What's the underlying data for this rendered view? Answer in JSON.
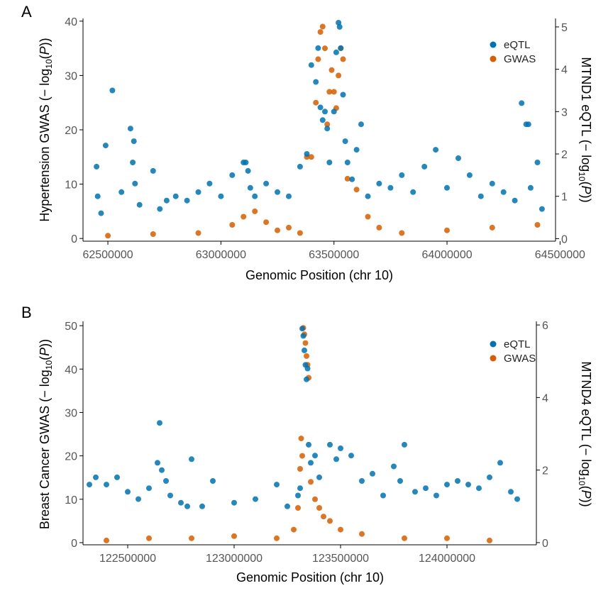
{
  "chart_data": [
    {
      "type": "scatter",
      "panel_label": "A",
      "xlabel": "Genomic Position (chr 10)",
      "ylabel_left": "Hypertension GWAS (− log",
      "ylabel_right": "MTND1 eQTL (− log",
      "ylabel_sub": "10",
      "ylabel_var": "P",
      "xlim": [
        62390000,
        64480000
      ],
      "xticks": [
        62500000,
        63000000,
        63500000,
        64000000,
        64500000
      ],
      "xtick_labels": [
        "62500000",
        "63000000",
        "63500000",
        "64000000",
        "64500000"
      ],
      "ylim_left": [
        -0.5,
        40.5
      ],
      "yticks_left": [
        0,
        10,
        20,
        30,
        40
      ],
      "ytick_labels_left": [
        "0",
        "10",
        "20",
        "30",
        "40"
      ],
      "ylim_right": [
        -0.06,
        5.2
      ],
      "yticks_right": [
        0,
        1,
        2,
        3,
        4,
        5
      ],
      "ytick_labels_right": [
        "0",
        "1",
        "2",
        "3",
        "4",
        "5"
      ],
      "legend_position": "top-right",
      "grid": false,
      "series": [
        {
          "name": "eQTL",
          "color": "#0072B2",
          "axis": "right",
          "x": [
            62450000,
            62455000,
            62470000,
            62490000,
            62520000,
            62560000,
            62600000,
            62610000,
            62615000,
            62620000,
            62640000,
            62700000,
            62730000,
            62760000,
            62800000,
            62850000,
            62900000,
            62950000,
            63000000,
            63050000,
            63100000,
            63110000,
            63120000,
            63130000,
            63150000,
            63200000,
            63250000,
            63300000,
            63350000,
            63380000,
            63400000,
            63420000,
            63430000,
            63440000,
            63450000,
            63460000,
            63470000,
            63480000,
            63500000,
            63510000,
            63520000,
            63525000,
            63530000,
            63540000,
            63550000,
            63560000,
            63580000,
            63600000,
            63620000,
            63650000,
            63700000,
            63750000,
            63800000,
            63850000,
            63900000,
            63950000,
            64000000,
            64050000,
            64100000,
            64150000,
            64200000,
            64250000,
            64300000,
            64330000,
            64350000,
            64360000,
            64370000,
            64400000,
            64420000
          ],
          "y": [
            1.7,
            1.0,
            0.6,
            2.2,
            3.5,
            1.1,
            2.6,
            1.8,
            2.3,
            1.3,
            0.8,
            1.6,
            0.7,
            0.9,
            1.0,
            0.9,
            1.1,
            1.3,
            1.0,
            1.5,
            1.8,
            1.8,
            1.6,
            1.2,
            1.0,
            1.3,
            1.1,
            1.0,
            1.7,
            2.0,
            4.1,
            3.7,
            4.5,
            3.1,
            2.8,
            3.0,
            2.6,
            1.8,
            3.0,
            4.4,
            5.1,
            5.0,
            4.5,
            3.4,
            2.3,
            1.8,
            1.4,
            2.1,
            2.7,
            1.0,
            1.3,
            1.2,
            1.5,
            1.1,
            1.7,
            2.1,
            1.2,
            1.9,
            1.5,
            1.0,
            1.3,
            1.1,
            0.9,
            3.2,
            2.7,
            2.7,
            1.2,
            1.8,
            0.7
          ]
        },
        {
          "name": "GWAS",
          "color": "#D55E00",
          "axis": "left",
          "x": [
            62500000,
            62700000,
            62900000,
            63050000,
            63100000,
            63150000,
            63200000,
            63250000,
            63300000,
            63350000,
            63380000,
            63400000,
            63420000,
            63430000,
            63440000,
            63450000,
            63460000,
            63470000,
            63480000,
            63490000,
            63500000,
            63510000,
            63520000,
            63530000,
            63540000,
            63560000,
            63600000,
            63650000,
            63700000,
            63800000,
            64000000,
            64200000,
            64400000
          ],
          "y": [
            0.5,
            0.8,
            1.0,
            2.5,
            4.0,
            5.0,
            3.0,
            1.5,
            2.0,
            1.0,
            15.0,
            15.0,
            25.0,
            33.0,
            38.0,
            39.0,
            35.0,
            21.0,
            27.0,
            31.0,
            27.0,
            24.0,
            30.0,
            35.0,
            33.0,
            11.0,
            9.0,
            4.0,
            2.0,
            1.0,
            1.5,
            2.0,
            2.5
          ]
        }
      ]
    },
    {
      "type": "scatter",
      "panel_label": "B",
      "xlabel": "Genomic Position (chr 10)",
      "ylabel_left": "Breast Cancer GWAS (− log",
      "ylabel_right": "MTND4 eQTL (− log",
      "ylabel_sub": "10",
      "ylabel_var": "P",
      "xlim": [
        122290000,
        124420000
      ],
      "xticks": [
        122500000,
        123000000,
        123500000,
        124000000
      ],
      "xtick_labels": [
        "122500000",
        "123000000",
        "123500000",
        "124000000"
      ],
      "ylim_left": [
        -0.5,
        51
      ],
      "yticks_left": [
        0,
        10,
        20,
        30,
        40,
        50
      ],
      "ytick_labels_left": [
        "0",
        "10",
        "20",
        "30",
        "40",
        "50"
      ],
      "ylim_right": [
        -0.06,
        6.1
      ],
      "yticks_right": [
        0,
        2,
        4,
        6
      ],
      "ytick_labels_right": [
        "0",
        "2",
        "4",
        "6"
      ],
      "legend_position": "top-right",
      "grid": false,
      "series": [
        {
          "name": "eQTL",
          "color": "#0072B2",
          "axis": "right",
          "x": [
            122320000,
            122350000,
            122400000,
            122450000,
            122500000,
            122550000,
            122600000,
            122640000,
            122650000,
            122660000,
            122680000,
            122700000,
            122750000,
            122780000,
            122800000,
            122850000,
            122900000,
            123000000,
            123100000,
            123200000,
            123250000,
            123300000,
            123310000,
            123320000,
            123325000,
            123330000,
            123335000,
            123340000,
            123345000,
            123350000,
            123360000,
            123380000,
            123400000,
            123450000,
            123480000,
            123500000,
            123550000,
            123600000,
            123650000,
            123700000,
            123750000,
            123780000,
            123800000,
            123850000,
            123900000,
            123950000,
            124000000,
            124050000,
            124100000,
            124150000,
            124200000,
            124250000,
            124300000,
            124330000
          ],
          "y": [
            1.6,
            1.8,
            1.6,
            1.8,
            1.4,
            1.2,
            1.5,
            2.2,
            3.3,
            2.0,
            1.7,
            1.3,
            1.1,
            1.0,
            2.3,
            1.0,
            1.7,
            1.1,
            1.2,
            1.6,
            1.0,
            1.3,
            1.5,
            5.9,
            5.7,
            5.3,
            4.9,
            4.5,
            4.8,
            2.7,
            2.2,
            2.4,
            1.8,
            2.7,
            2.3,
            2.6,
            2.4,
            1.7,
            1.9,
            1.3,
            2.1,
            1.7,
            2.7,
            1.4,
            1.5,
            1.3,
            1.6,
            1.7,
            1.6,
            1.5,
            1.8,
            2.2,
            1.4,
            1.2
          ]
        },
        {
          "name": "GWAS",
          "color": "#D55E00",
          "axis": "left",
          "x": [
            122400000,
            122600000,
            122800000,
            123000000,
            123200000,
            123280000,
            123300000,
            123310000,
            123315000,
            123320000,
            123325000,
            123330000,
            123335000,
            123340000,
            123345000,
            123350000,
            123360000,
            123380000,
            123400000,
            123420000,
            123450000,
            123500000,
            123600000,
            123800000,
            124000000,
            124200000
          ],
          "y": [
            0.5,
            1.0,
            1.0,
            1.5,
            1.0,
            3.0,
            8.0,
            17.0,
            24.0,
            20.0,
            49.5,
            48.0,
            46.0,
            43.0,
            41.0,
            38.0,
            14.0,
            10.0,
            8.0,
            6.0,
            5.0,
            3.0,
            2.0,
            1.0,
            1.0,
            0.5
          ]
        }
      ]
    }
  ]
}
